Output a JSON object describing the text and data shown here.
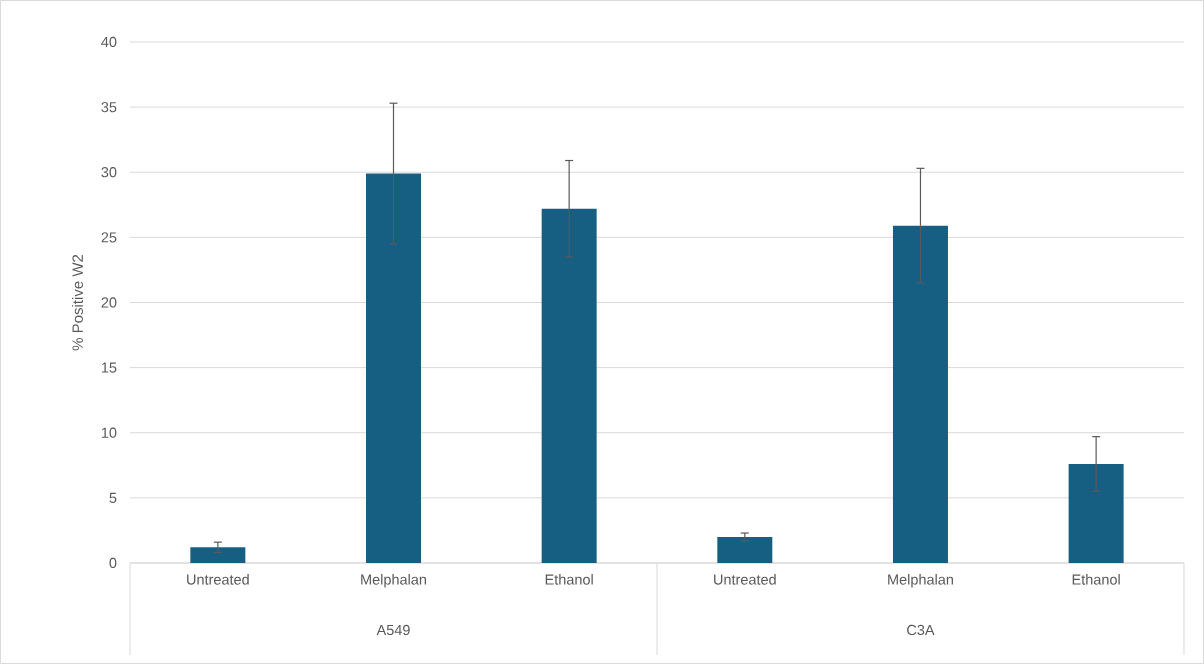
{
  "chart_data": {
    "type": "bar",
    "ylabel": "% Positive W2",
    "categories": [
      "Untreated",
      "Melphalan",
      "Ethanol",
      "Untreated",
      "Melphalan",
      "Ethanol"
    ],
    "values": [
      1.2,
      29.9,
      27.2,
      2.0,
      25.9,
      7.6
    ],
    "errors": [
      0.4,
      5.4,
      3.7,
      0.3,
      4.4,
      2.1
    ],
    "color": "#175f82",
    "ylim": [
      0,
      40
    ],
    "yticks": [
      0,
      5,
      10,
      15,
      20,
      25,
      30,
      35,
      40
    ],
    "grid": "y",
    "annotations": [
      "A549",
      "C3A"
    ]
  }
}
